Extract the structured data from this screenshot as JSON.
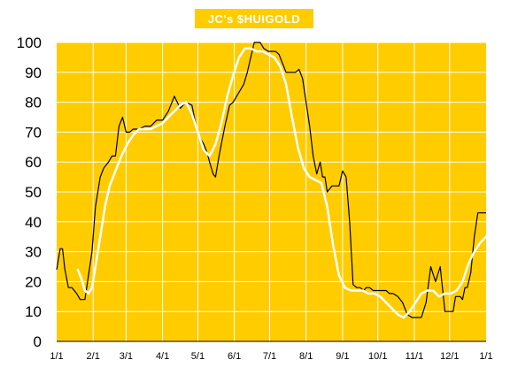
{
  "chart_data": {
    "type": "line",
    "title": "JC's $HUIGOLD",
    "ylim": [
      0,
      100
    ],
    "yticks": [
      0,
      10,
      20,
      30,
      40,
      50,
      60,
      70,
      80,
      90,
      100
    ],
    "xtick_labels": [
      "1/1",
      "2/1",
      "3/1",
      "4/1",
      "5/1",
      "6/1",
      "7/1",
      "8/1",
      "9/1",
      "10/1",
      "11/1",
      "12/1",
      "1/1"
    ],
    "grid": true,
    "colors": {
      "background": "#ffcc00",
      "grid": "#ffffff",
      "raw_line": "#000000",
      "smooth_line": "#ffffff"
    },
    "series": [
      {
        "style": "thin-dark",
        "x": [
          0,
          3,
          5,
          7,
          10,
          13,
          17,
          20,
          24,
          27,
          30,
          33,
          37,
          40,
          44,
          47,
          50,
          53,
          56,
          59,
          62,
          65,
          70,
          75,
          80,
          85,
          90,
          95,
          100,
          105,
          110,
          115,
          118,
          120,
          122,
          125,
          128,
          130,
          133,
          135,
          138,
          140,
          143,
          147,
          150,
          153,
          156,
          159,
          162,
          165,
          168,
          170,
          173,
          176,
          180,
          183,
          186,
          189,
          192,
          195,
          198,
          200,
          203,
          206,
          209,
          212,
          215,
          218,
          221,
          224,
          226,
          228,
          230,
          232,
          234,
          237,
          240,
          243,
          246,
          249,
          252,
          255,
          258,
          261,
          263,
          266,
          269,
          272,
          275,
          278,
          280,
          283,
          286,
          290,
          294,
          298,
          302,
          306,
          310,
          314,
          318,
          322,
          326,
          330,
          333,
          335,
          337,
          339,
          341,
          343,
          345,
          347,
          349,
          352,
          355,
          358,
          361,
          365
        ],
        "y": [
          24,
          31,
          31,
          24,
          18,
          18,
          16,
          14,
          14,
          22,
          30,
          45,
          55,
          58,
          60,
          62,
          62,
          72,
          75,
          70,
          70,
          71,
          71,
          72,
          72,
          74,
          74,
          77,
          82,
          78,
          80,
          79,
          73,
          70,
          68,
          66,
          63,
          60,
          56,
          55,
          62,
          66,
          72,
          79,
          80,
          82,
          84,
          86,
          90,
          95,
          100,
          100,
          100,
          98,
          97,
          97,
          97,
          96,
          93,
          90,
          90,
          90,
          90,
          91,
          88,
          80,
          72,
          62,
          56,
          60,
          55,
          55,
          50,
          51,
          52,
          52,
          52,
          57,
          55,
          40,
          19,
          18,
          18,
          17,
          18,
          18,
          17,
          17,
          17,
          17,
          17,
          16,
          16,
          15,
          13,
          9,
          8,
          8,
          8,
          13,
          25,
          20,
          25,
          10,
          10,
          10,
          10,
          15,
          15,
          15,
          14,
          18,
          18,
          23,
          35,
          43,
          43,
          43
        ]
      },
      {
        "style": "thick-white",
        "x": [
          18,
          21,
          24,
          27,
          30,
          33,
          37,
          41,
          45,
          50,
          55,
          60,
          65,
          70,
          75,
          80,
          85,
          90,
          95,
          100,
          105,
          110,
          115,
          120,
          125,
          130,
          135,
          140,
          145,
          150,
          155,
          160,
          165,
          170,
          175,
          180,
          185,
          190,
          195,
          200,
          205,
          210,
          215,
          220,
          225,
          230,
          235,
          240,
          245,
          250,
          255,
          260,
          265,
          270,
          275,
          280,
          285,
          290,
          295,
          300,
          305,
          310,
          315,
          320,
          325,
          330,
          335,
          340,
          345,
          350,
          355,
          360,
          365
        ],
        "y": [
          24,
          21,
          17,
          16,
          18,
          25,
          35,
          45,
          52,
          57,
          62,
          66,
          69,
          71,
          71,
          71,
          72,
          73,
          75,
          77,
          79,
          80,
          76,
          70,
          64,
          62,
          66,
          73,
          82,
          89,
          95,
          98,
          98,
          97,
          97,
          96,
          95,
          92,
          86,
          75,
          65,
          58,
          55,
          54,
          53,
          45,
          32,
          22,
          18,
          17,
          17,
          17,
          16,
          16,
          15,
          13,
          11,
          9,
          8,
          10,
          13,
          16,
          17,
          17,
          15,
          16,
          16,
          17,
          20,
          26,
          30,
          33,
          35
        ]
      }
    ]
  }
}
